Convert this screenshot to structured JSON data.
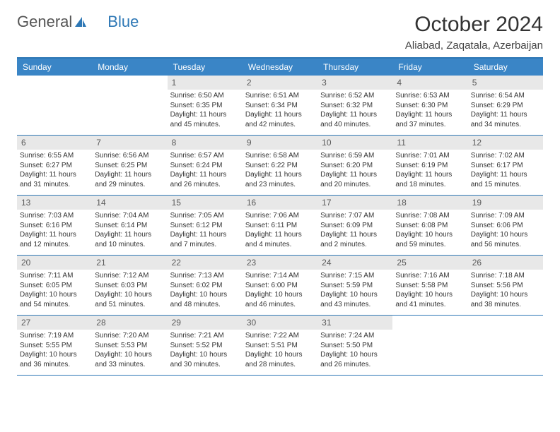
{
  "brand": {
    "part1": "General",
    "part2": "Blue"
  },
  "title": "October 2024",
  "location": "Aliabad, Zaqatala, Azerbaijan",
  "colors": {
    "header_bg": "#3a85c6",
    "border": "#2d77b5",
    "daynum_bg": "#e8e8e8",
    "text": "#333333"
  },
  "day_names": [
    "Sunday",
    "Monday",
    "Tuesday",
    "Wednesday",
    "Thursday",
    "Friday",
    "Saturday"
  ],
  "weeks": [
    [
      {
        "n": "",
        "sr": "",
        "ss": "",
        "dl": ""
      },
      {
        "n": "",
        "sr": "",
        "ss": "",
        "dl": ""
      },
      {
        "n": "1",
        "sr": "Sunrise: 6:50 AM",
        "ss": "Sunset: 6:35 PM",
        "dl": "Daylight: 11 hours and 45 minutes."
      },
      {
        "n": "2",
        "sr": "Sunrise: 6:51 AM",
        "ss": "Sunset: 6:34 PM",
        "dl": "Daylight: 11 hours and 42 minutes."
      },
      {
        "n": "3",
        "sr": "Sunrise: 6:52 AM",
        "ss": "Sunset: 6:32 PM",
        "dl": "Daylight: 11 hours and 40 minutes."
      },
      {
        "n": "4",
        "sr": "Sunrise: 6:53 AM",
        "ss": "Sunset: 6:30 PM",
        "dl": "Daylight: 11 hours and 37 minutes."
      },
      {
        "n": "5",
        "sr": "Sunrise: 6:54 AM",
        "ss": "Sunset: 6:29 PM",
        "dl": "Daylight: 11 hours and 34 minutes."
      }
    ],
    [
      {
        "n": "6",
        "sr": "Sunrise: 6:55 AM",
        "ss": "Sunset: 6:27 PM",
        "dl": "Daylight: 11 hours and 31 minutes."
      },
      {
        "n": "7",
        "sr": "Sunrise: 6:56 AM",
        "ss": "Sunset: 6:25 PM",
        "dl": "Daylight: 11 hours and 29 minutes."
      },
      {
        "n": "8",
        "sr": "Sunrise: 6:57 AM",
        "ss": "Sunset: 6:24 PM",
        "dl": "Daylight: 11 hours and 26 minutes."
      },
      {
        "n": "9",
        "sr": "Sunrise: 6:58 AM",
        "ss": "Sunset: 6:22 PM",
        "dl": "Daylight: 11 hours and 23 minutes."
      },
      {
        "n": "10",
        "sr": "Sunrise: 6:59 AM",
        "ss": "Sunset: 6:20 PM",
        "dl": "Daylight: 11 hours and 20 minutes."
      },
      {
        "n": "11",
        "sr": "Sunrise: 7:01 AM",
        "ss": "Sunset: 6:19 PM",
        "dl": "Daylight: 11 hours and 18 minutes."
      },
      {
        "n": "12",
        "sr": "Sunrise: 7:02 AM",
        "ss": "Sunset: 6:17 PM",
        "dl": "Daylight: 11 hours and 15 minutes."
      }
    ],
    [
      {
        "n": "13",
        "sr": "Sunrise: 7:03 AM",
        "ss": "Sunset: 6:16 PM",
        "dl": "Daylight: 11 hours and 12 minutes."
      },
      {
        "n": "14",
        "sr": "Sunrise: 7:04 AM",
        "ss": "Sunset: 6:14 PM",
        "dl": "Daylight: 11 hours and 10 minutes."
      },
      {
        "n": "15",
        "sr": "Sunrise: 7:05 AM",
        "ss": "Sunset: 6:12 PM",
        "dl": "Daylight: 11 hours and 7 minutes."
      },
      {
        "n": "16",
        "sr": "Sunrise: 7:06 AM",
        "ss": "Sunset: 6:11 PM",
        "dl": "Daylight: 11 hours and 4 minutes."
      },
      {
        "n": "17",
        "sr": "Sunrise: 7:07 AM",
        "ss": "Sunset: 6:09 PM",
        "dl": "Daylight: 11 hours and 2 minutes."
      },
      {
        "n": "18",
        "sr": "Sunrise: 7:08 AM",
        "ss": "Sunset: 6:08 PM",
        "dl": "Daylight: 10 hours and 59 minutes."
      },
      {
        "n": "19",
        "sr": "Sunrise: 7:09 AM",
        "ss": "Sunset: 6:06 PM",
        "dl": "Daylight: 10 hours and 56 minutes."
      }
    ],
    [
      {
        "n": "20",
        "sr": "Sunrise: 7:11 AM",
        "ss": "Sunset: 6:05 PM",
        "dl": "Daylight: 10 hours and 54 minutes."
      },
      {
        "n": "21",
        "sr": "Sunrise: 7:12 AM",
        "ss": "Sunset: 6:03 PM",
        "dl": "Daylight: 10 hours and 51 minutes."
      },
      {
        "n": "22",
        "sr": "Sunrise: 7:13 AM",
        "ss": "Sunset: 6:02 PM",
        "dl": "Daylight: 10 hours and 48 minutes."
      },
      {
        "n": "23",
        "sr": "Sunrise: 7:14 AM",
        "ss": "Sunset: 6:00 PM",
        "dl": "Daylight: 10 hours and 46 minutes."
      },
      {
        "n": "24",
        "sr": "Sunrise: 7:15 AM",
        "ss": "Sunset: 5:59 PM",
        "dl": "Daylight: 10 hours and 43 minutes."
      },
      {
        "n": "25",
        "sr": "Sunrise: 7:16 AM",
        "ss": "Sunset: 5:58 PM",
        "dl": "Daylight: 10 hours and 41 minutes."
      },
      {
        "n": "26",
        "sr": "Sunrise: 7:18 AM",
        "ss": "Sunset: 5:56 PM",
        "dl": "Daylight: 10 hours and 38 minutes."
      }
    ],
    [
      {
        "n": "27",
        "sr": "Sunrise: 7:19 AM",
        "ss": "Sunset: 5:55 PM",
        "dl": "Daylight: 10 hours and 36 minutes."
      },
      {
        "n": "28",
        "sr": "Sunrise: 7:20 AM",
        "ss": "Sunset: 5:53 PM",
        "dl": "Daylight: 10 hours and 33 minutes."
      },
      {
        "n": "29",
        "sr": "Sunrise: 7:21 AM",
        "ss": "Sunset: 5:52 PM",
        "dl": "Daylight: 10 hours and 30 minutes."
      },
      {
        "n": "30",
        "sr": "Sunrise: 7:22 AM",
        "ss": "Sunset: 5:51 PM",
        "dl": "Daylight: 10 hours and 28 minutes."
      },
      {
        "n": "31",
        "sr": "Sunrise: 7:24 AM",
        "ss": "Sunset: 5:50 PM",
        "dl": "Daylight: 10 hours and 26 minutes."
      },
      {
        "n": "",
        "sr": "",
        "ss": "",
        "dl": ""
      },
      {
        "n": "",
        "sr": "",
        "ss": "",
        "dl": ""
      }
    ]
  ]
}
